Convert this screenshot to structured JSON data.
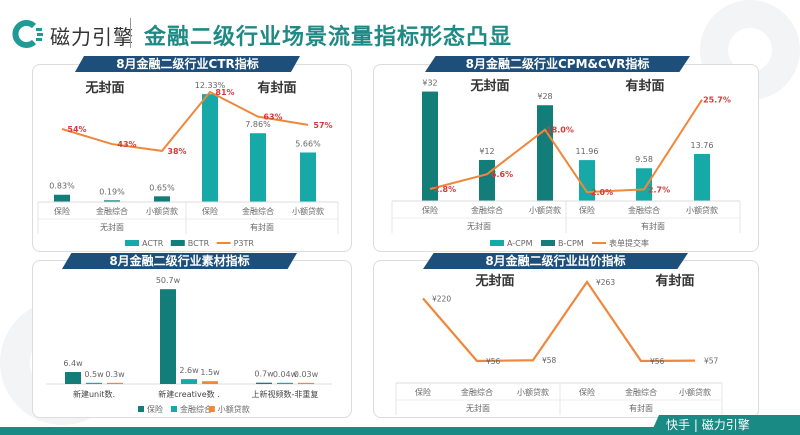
{
  "header": {
    "brand": "磁力引擎",
    "title": "金融二级行业场景流量指标形态凸显"
  },
  "footer": {
    "logo1": "快手",
    "logo2": "磁力引擎"
  },
  "colors": {
    "teal": "#17a9a8",
    "dark_teal": "#137d79",
    "orange": "#f0873a",
    "red_label": "#d63b3b",
    "banner": "#1e4f7a"
  },
  "chart_data": [
    {
      "id": "ctr",
      "type": "bar+line",
      "title": "8月金融二级行业CTR指标",
      "group_titles": [
        "无封面",
        "有封面"
      ],
      "categories": [
        "保险",
        "金融综合",
        "小额贷款",
        "保险",
        "金融综合",
        "小额贷款"
      ],
      "groups": [
        "无封面",
        "无封面",
        "无封面",
        "有封面",
        "有封面",
        "有封面"
      ],
      "series": [
        {
          "name": "ACTR",
          "type": "bar",
          "values": [
            null,
            null,
            null,
            12.33,
            7.86,
            5.66
          ],
          "labels": [
            "",
            "",
            "",
            "12.33%",
            "7.86%",
            "5.66%"
          ]
        },
        {
          "name": "BCTR",
          "type": "bar",
          "values": [
            0.83,
            0.19,
            0.65,
            null,
            null,
            null
          ],
          "labels": [
            "0.83%",
            "0.19%",
            "0.65%",
            "",
            "",
            ""
          ]
        },
        {
          "name": "P3TR",
          "type": "line",
          "values": [
            54,
            43,
            38,
            81,
            63,
            57
          ],
          "labels": [
            "54%",
            "43%",
            "38%",
            "81%",
            "63%",
            "57%"
          ]
        }
      ]
    },
    {
      "id": "cpm",
      "type": "bar+line",
      "title": "8月金融二级行业CPM&CVR指标",
      "group_titles": [
        "无封面",
        "有封面"
      ],
      "categories": [
        "保险",
        "金融综合",
        "小额贷款",
        "保险",
        "金融综合",
        "小额贷款"
      ],
      "groups": [
        "无封面",
        "无封面",
        "无封面",
        "有封面",
        "有封面",
        "有封面"
      ],
      "series": [
        {
          "name": "A-CPM",
          "type": "bar",
          "values": [
            null,
            null,
            null,
            11.96,
            9.58,
            13.76
          ],
          "labels": [
            "",
            "",
            "",
            "11.96",
            "9.58",
            "13.76"
          ]
        },
        {
          "name": "B-CPM",
          "type": "bar",
          "values": [
            32,
            12,
            28,
            null,
            null,
            null
          ],
          "labels": [
            "¥32",
            "¥12",
            "¥28",
            "",
            "",
            ""
          ]
        },
        {
          "name": "表单提交率",
          "type": "line",
          "values": [
            2.8,
            6.6,
            18.0,
            2.0,
            2.7,
            25.7
          ],
          "labels": [
            "2.8%",
            "6.6%",
            "18.0%",
            "2.0%",
            "2.7%",
            "25.7%"
          ]
        }
      ]
    },
    {
      "id": "material",
      "type": "bar",
      "title": "8月金融二级行业素材指标",
      "categories": [
        "新建unit数.",
        "新建creative数 .",
        "上新视频数-非重复"
      ],
      "series": [
        {
          "name": "保险",
          "values": [
            6.4,
            50.7,
            0.7
          ],
          "labels": [
            "6.4w",
            "50.7w",
            "0.7w"
          ]
        },
        {
          "name": "金融综合",
          "values": [
            0.5,
            2.6,
            0.04
          ],
          "labels": [
            "0.5w",
            "2.6w",
            "0.04w"
          ]
        },
        {
          "name": "小额贷款",
          "values": [
            0.3,
            1.5,
            0.03
          ],
          "labels": [
            "0.3w",
            "1.5w",
            "0.03w"
          ]
        }
      ]
    },
    {
      "id": "bid",
      "type": "line",
      "title": "8月金融二级行业出价指标",
      "group_titles": [
        "无封面",
        "有封面"
      ],
      "categories": [
        "保险",
        "金融综合",
        "小额贷款",
        "保险",
        "金融综合",
        "小额贷款"
      ],
      "groups": [
        "无封面",
        "无封面",
        "无封面",
        "有封面",
        "有封面",
        "有封面"
      ],
      "series": [
        {
          "values": [
            220,
            56,
            58,
            263,
            56,
            57
          ],
          "labels": [
            "¥220",
            "¥56",
            "¥58",
            "¥263",
            "¥56",
            "¥57"
          ]
        }
      ]
    }
  ]
}
